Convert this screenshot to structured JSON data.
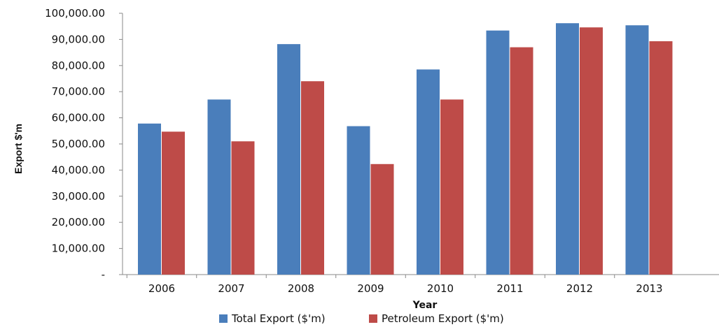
{
  "chart_data": {
    "type": "bar",
    "xlabel": "Year",
    "ylabel": "Export $'m",
    "ylim": [
      0,
      100000
    ],
    "yticks": [
      "-",
      "10,000.00",
      "20,000.00",
      "30,000.00",
      "40,000.00",
      "50,000.00",
      "60,000.00",
      "70,000.00",
      "80,000.00",
      "90,000.00",
      "100,000.00"
    ],
    "ytick_values": [
      0,
      10000,
      20000,
      30000,
      40000,
      50000,
      60000,
      70000,
      80000,
      90000,
      100000
    ],
    "categories": [
      "2006",
      "2007",
      "2008",
      "2009",
      "2010",
      "2011",
      "2012",
      "2013"
    ],
    "series": [
      {
        "name": "Total Export ($'m)",
        "color": "#4a7ebb",
        "values": [
          57800,
          67000,
          88200,
          56800,
          78500,
          93400,
          96200,
          95400
        ]
      },
      {
        "name": "Petroleum Export ($'m)",
        "color": "#be4b48",
        "values": [
          54700,
          51000,
          74000,
          42300,
          67000,
          87000,
          94600,
          89300
        ]
      }
    ],
    "grid": false,
    "legend": "bottom"
  }
}
